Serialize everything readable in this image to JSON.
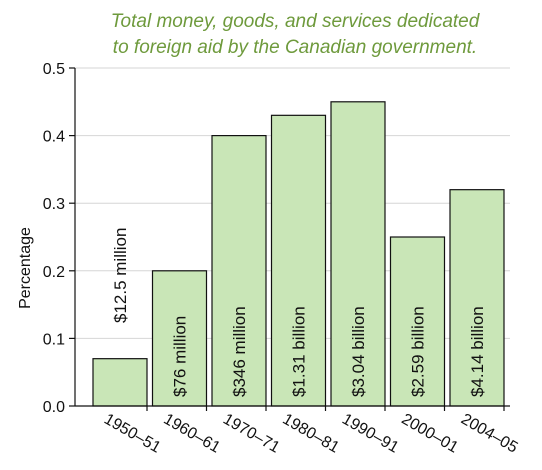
{
  "chart_data": {
    "type": "bar",
    "title_lines": [
      "Total money, goods, and services dedicated",
      "to foreign aid by the Canadian government."
    ],
    "ylabel": "Percentage",
    "xlabel": "",
    "ylim": [
      0,
      0.5
    ],
    "yticks": [
      "0.0",
      "0.1",
      "0.2",
      "0.3",
      "0.4",
      "0.5"
    ],
    "categories": [
      "1950–51",
      "1960–61",
      "1970–71",
      "1980–81",
      "1990–91",
      "2000–01",
      "2004–05"
    ],
    "values": [
      0.07,
      0.2,
      0.4,
      0.43,
      0.45,
      0.25,
      0.32
    ],
    "bar_labels": [
      "$12.5  million",
      "$76 million",
      "$346  million",
      "$1.31  billion",
      "$3.04  billion",
      "$2.59 billion",
      "$4.14  billion"
    ],
    "grid": true,
    "colors": {
      "bar_fill": "#c9e6b7",
      "bar_stroke": "#111111",
      "title": "#6e9a3c"
    }
  }
}
